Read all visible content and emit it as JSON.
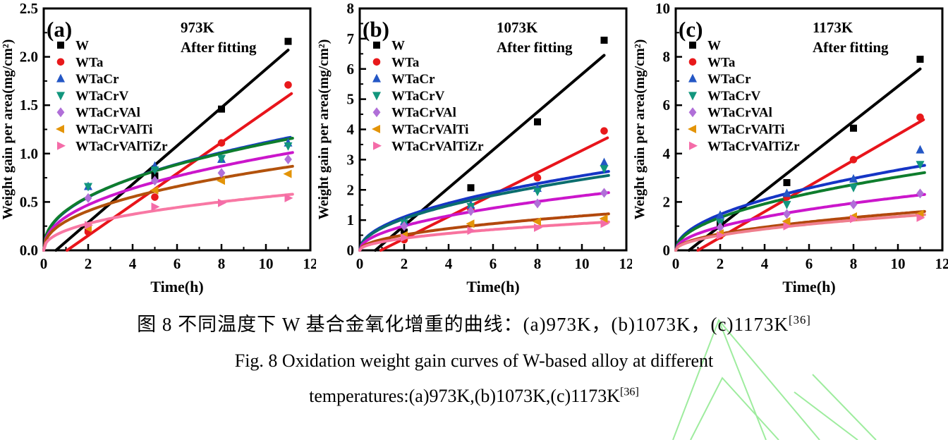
{
  "figure": {
    "caption_zh": "图 8 不同温度下 W 基合金氧化增重的曲线：(a)973K，(b)1073K，(c)1173K",
    "caption_zh_ref": "[36]",
    "caption_en_line1": "Fig. 8 Oxidation weight gain curves of W-based alloy at different",
    "caption_en_line2": "temperatures:(a)973K,(b)1073K,(c)1173K",
    "caption_en_ref": "[36]",
    "watermark_color": "#8ee98e"
  },
  "chart_data": [
    {
      "type": "scatter",
      "panel": "(a)",
      "annotation": [
        "973K",
        "After fitting"
      ],
      "xlabel": "Time(h)",
      "ylabel": "Weight gain per area(mg/cm²)",
      "xlim": [
        0,
        12
      ],
      "ylim": [
        0,
        2.5
      ],
      "xticks": [
        0,
        2,
        4,
        6,
        8,
        10,
        12
      ],
      "x_minor_step": 1,
      "ytick_step": 0.5,
      "y_minor_step": 0.25,
      "y_decimals": 1,
      "x": [
        2,
        5,
        8,
        11
      ],
      "series": [
        {
          "name": "W",
          "marker": "square",
          "marker_color": "#000000",
          "line_color": "#000000",
          "values": [
            0.21,
            0.77,
            1.46,
            2.16
          ],
          "fit": {
            "kind": "linear",
            "x0": 0.55,
            "x1": 11.0,
            "y1": 2.07
          }
        },
        {
          "name": "WTa",
          "marker": "circle",
          "marker_color": "#e8191b",
          "line_color": "#e8141b",
          "values": [
            0.19,
            0.55,
            1.11,
            1.71
          ],
          "fit": {
            "kind": "linear",
            "x0": 1.05,
            "x1": 11.15,
            "y1": 1.62
          }
        },
        {
          "name": "WTaCr",
          "marker": "up",
          "marker_color": "#2457c5",
          "line_color": "#1a3fc4",
          "values": [
            0.66,
            0.87,
            0.94,
            1.11
          ],
          "fit": {
            "kind": "power",
            "a": 0.405,
            "b": 0.44,
            "x_end": 11.15
          }
        },
        {
          "name": "WTaCrV",
          "marker": "down",
          "marker_color": "#12967d",
          "line_color": "#0e7d2d",
          "values": [
            0.66,
            0.83,
            0.95,
            1.08
          ],
          "fit": {
            "kind": "power",
            "a": 0.41,
            "b": 0.43,
            "x_end": 11.2
          }
        },
        {
          "name": "WTaCrVAl",
          "marker": "diamond",
          "marker_color": "#b06fd8",
          "line_color": "#cb16cb",
          "values": [
            0.54,
            0.72,
            0.8,
            0.94
          ],
          "fit": {
            "kind": "power",
            "a": 0.345,
            "b": 0.445,
            "x_end": 11.2
          }
        },
        {
          "name": "WTaCrVAlTi",
          "marker": "left",
          "marker_color": "#e39408",
          "line_color": "#b2520c",
          "values": [
            0.23,
            0.62,
            0.72,
            0.79
          ],
          "fit": {
            "kind": "power",
            "a": 0.3,
            "b": 0.44,
            "x_end": 11.2
          }
        },
        {
          "name": "WTaCrVAlTiZr",
          "marker": "right",
          "marker_color": "#f46ca8",
          "line_color": "#f878a4",
          "values": [
            0.26,
            0.45,
            0.49,
            0.54
          ],
          "fit": {
            "kind": "power",
            "a": 0.205,
            "b": 0.43,
            "x_end": 11.2
          }
        }
      ]
    },
    {
      "type": "scatter",
      "panel": "(b)",
      "annotation": [
        "1073K",
        "After fitting"
      ],
      "xlabel": "Time(h)",
      "ylabel": "Weight gain per area(mg/cm²)",
      "xlim": [
        0,
        12
      ],
      "ylim": [
        0,
        8
      ],
      "xticks": [
        0,
        2,
        4,
        6,
        8,
        10,
        12
      ],
      "x_minor_step": 1,
      "ytick_step": 1,
      "y_minor_step": 0.5,
      "y_decimals": 0,
      "x": [
        2,
        5,
        8,
        11
      ],
      "series": [
        {
          "name": "W",
          "marker": "square",
          "marker_color": "#000000",
          "line_color": "#000000",
          "values": [
            0.6,
            2.07,
            4.25,
            6.95
          ],
          "fit": {
            "kind": "linear",
            "x0": 0.7,
            "x1": 11.0,
            "y1": 6.45
          }
        },
        {
          "name": "WTa",
          "marker": "circle",
          "marker_color": "#e8191b",
          "line_color": "#e8141b",
          "values": [
            0.35,
            1.35,
            2.4,
            3.95
          ],
          "fit": {
            "kind": "linear",
            "x0": 0.95,
            "x1": 11.15,
            "y1": 3.72
          }
        },
        {
          "name": "WTaCr",
          "marker": "up",
          "marker_color": "#2457c5",
          "line_color": "#1535c5",
          "values": [
            0.95,
            1.5,
            2.05,
            2.9
          ],
          "fit": {
            "kind": "power",
            "a": 0.78,
            "b": 0.5,
            "x_end": 11.2
          }
        },
        {
          "name": "WTaCrV",
          "marker": "down",
          "marker_color": "#12967d",
          "line_color": "#0b6e6e",
          "values": [
            0.9,
            1.45,
            1.95,
            2.7
          ],
          "fit": {
            "kind": "power",
            "a": 0.74,
            "b": 0.5,
            "x_end": 11.2
          }
        },
        {
          "name": "WTaCrVAl",
          "marker": "diamond",
          "marker_color": "#b06fd8",
          "line_color": "#cb16cb",
          "values": [
            0.8,
            1.3,
            1.55,
            1.9
          ],
          "fit": {
            "kind": "power",
            "a": 0.57,
            "b": 0.5,
            "x_end": 11.2
          }
        },
        {
          "name": "WTaCrVAlTi",
          "marker": "left",
          "marker_color": "#e39408",
          "line_color": "#b2480c",
          "values": [
            0.5,
            0.88,
            0.95,
            1.05
          ],
          "fit": {
            "kind": "power",
            "a": 0.36,
            "b": 0.5,
            "x_end": 11.2
          }
        },
        {
          "name": "WTaCrVAlTiZr",
          "marker": "right",
          "marker_color": "#f46ca8",
          "line_color": "#f8739e",
          "values": [
            0.42,
            0.65,
            0.75,
            0.88
          ],
          "fit": {
            "kind": "power",
            "a": 0.28,
            "b": 0.5,
            "x_end": 11.2
          }
        }
      ]
    },
    {
      "type": "scatter",
      "panel": "(c)",
      "annotation": [
        "1173K",
        "After fitting"
      ],
      "xlabel": "Time(h)",
      "ylabel": "Weight gain per area(mg/cm²)",
      "xlim": [
        0,
        12
      ],
      "ylim": [
        0,
        10
      ],
      "xticks": [
        0,
        2,
        4,
        6,
        8,
        10,
        12
      ],
      "x_minor_step": 1,
      "ytick_step": 2,
      "y_minor_step": 1,
      "y_decimals": 0,
      "x": [
        2,
        5,
        8,
        11
      ],
      "series": [
        {
          "name": "W",
          "marker": "square",
          "marker_color": "#000000",
          "line_color": "#000000",
          "values": [
            1.1,
            2.8,
            5.05,
            7.9
          ],
          "fit": {
            "kind": "linear",
            "x0": 0.6,
            "x1": 11.0,
            "y1": 7.5
          }
        },
        {
          "name": "WTa",
          "marker": "circle",
          "marker_color": "#e8191b",
          "line_color": "#e8141b",
          "values": [
            0.6,
            2.2,
            3.75,
            5.5
          ],
          "fit": {
            "kind": "linear",
            "x0": 1.0,
            "x1": 11.15,
            "y1": 5.4
          }
        },
        {
          "name": "WTaCr",
          "marker": "up",
          "marker_color": "#2457c5",
          "line_color": "#1535c5",
          "values": [
            1.45,
            2.35,
            2.95,
            4.15
          ],
          "fit": {
            "kind": "power",
            "a": 1.05,
            "b": 0.5,
            "x_end": 11.2
          }
        },
        {
          "name": "WTaCrV",
          "marker": "down",
          "marker_color": "#12967d",
          "line_color": "#0e7d2d",
          "values": [
            1.15,
            1.9,
            2.6,
            3.55
          ],
          "fit": {
            "kind": "power",
            "a": 0.96,
            "b": 0.5,
            "x_end": 11.2
          }
        },
        {
          "name": "WTaCrVAl",
          "marker": "diamond",
          "marker_color": "#b06fd8",
          "line_color": "#cb16cb",
          "values": [
            0.95,
            1.5,
            1.9,
            2.35
          ],
          "fit": {
            "kind": "power",
            "a": 0.69,
            "b": 0.5,
            "x_end": 11.2
          }
        },
        {
          "name": "WTaCrVAlTi",
          "marker": "left",
          "marker_color": "#e39408",
          "line_color": "#b2480c",
          "values": [
            0.7,
            1.2,
            1.4,
            1.5
          ],
          "fit": {
            "kind": "power",
            "a": 0.48,
            "b": 0.5,
            "x_end": 11.2
          }
        },
        {
          "name": "WTaCrVAlTiZr",
          "marker": "right",
          "marker_color": "#f46ca8",
          "line_color": "#ef7f8e",
          "values": [
            0.62,
            1.0,
            1.3,
            1.35
          ],
          "fit": {
            "kind": "power",
            "a": 0.44,
            "b": 0.5,
            "x_end": 11.2
          }
        }
      ]
    }
  ]
}
